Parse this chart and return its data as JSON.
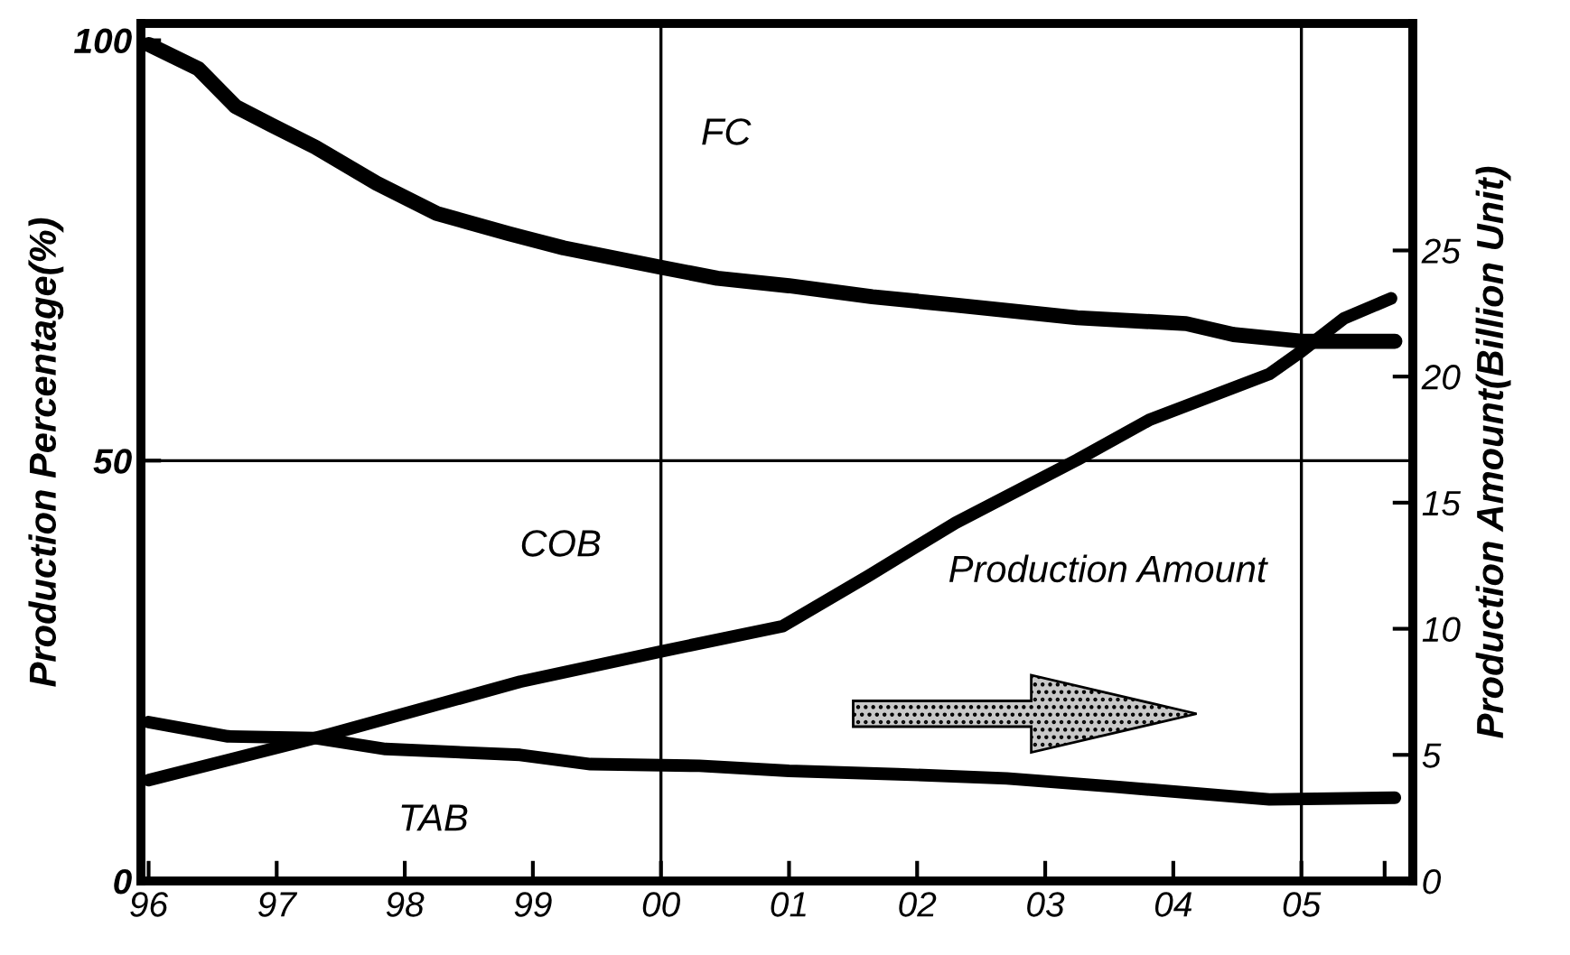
{
  "chart_data": {
    "type": "line",
    "ylabel": "Production Percentage(%)",
    "y2label": "Production Amount(Billion Unit)",
    "xlim": [
      1995.94,
      2005.87
    ],
    "ylim": [
      0,
      102
    ],
    "y2lim": [
      0,
      34
    ],
    "xticks": [
      {
        "value": 1996,
        "label": "96"
      },
      {
        "value": 1997,
        "label": "97"
      },
      {
        "value": 1998,
        "label": "98"
      },
      {
        "value": 1999,
        "label": "99"
      },
      {
        "value": 2000,
        "label": "00"
      },
      {
        "value": 2001,
        "label": "01"
      },
      {
        "value": 2002,
        "label": "02"
      },
      {
        "value": 2003,
        "label": "03"
      },
      {
        "value": 2004,
        "label": "04"
      },
      {
        "value": 2005,
        "label": "05"
      },
      {
        "value": 2005.65,
        "label": null
      }
    ],
    "yticks": [
      0,
      50,
      100
    ],
    "y2ticks": [
      0,
      5,
      10,
      15,
      20,
      25
    ],
    "grid": false,
    "marker": "none",
    "line_style": "solid",
    "series": [
      {
        "color": "#000000",
        "x": [
          1996,
          1996.39,
          1996.68,
          1996.96,
          1997.3,
          1997.78,
          1998.25,
          1998.81,
          1999.24,
          2000,
          2000.44,
          2001.0,
          2001.65,
          2002.3,
          2003.25,
          2004.1,
          2004.47,
          2005,
          2005.73
        ],
        "values": [
          99.5,
          96.6,
          92.1,
          89.9,
          87.3,
          83.0,
          79.4,
          77.0,
          75.3,
          73.0,
          71.7,
          70.8,
          69.5,
          68.5,
          67.0,
          66.3,
          65.0,
          64.2,
          64.2
        ]
      },
      {
        "color": "#000000",
        "x": [
          1996,
          1996.62,
          1997.3,
          1997.85,
          1998.9,
          1999.45,
          2000.3,
          2001,
          2001.85,
          2002.7,
          2003.55,
          2004.75,
          2005.73
        ],
        "values": [
          18.9,
          17.2,
          17.0,
          15.7,
          15.0,
          13.9,
          13.7,
          13.1,
          12.7,
          12.2,
          11.2,
          9.7,
          9.9
        ]
      },
      {
        "color": "#000000",
        "axis": "y2",
        "x": [
          1996,
          1997.4,
          1998.9,
          2000,
          2000.95,
          2001.62,
          2002.3,
          2003.25,
          2003.82,
          2004.75,
          2005,
          2005.33,
          2005.7
        ],
        "values": [
          4.0,
          5.8,
          7.9,
          9.1,
          10.1,
          12.1,
          14.2,
          16.7,
          18.3,
          20.1,
          21.0,
          22.3,
          23.1
        ]
      }
    ],
    "ref_lines": [
      {
        "axis": "x",
        "value": 2000,
        "color": "#000000"
      },
      {
        "axis": "x",
        "value": 2005,
        "color": "#000000"
      },
      {
        "axis": "y",
        "value": 50,
        "color": "#000000"
      }
    ],
    "annotations": [
      "FC",
      "COB",
      "TAB",
      "Production Amount"
    ]
  }
}
